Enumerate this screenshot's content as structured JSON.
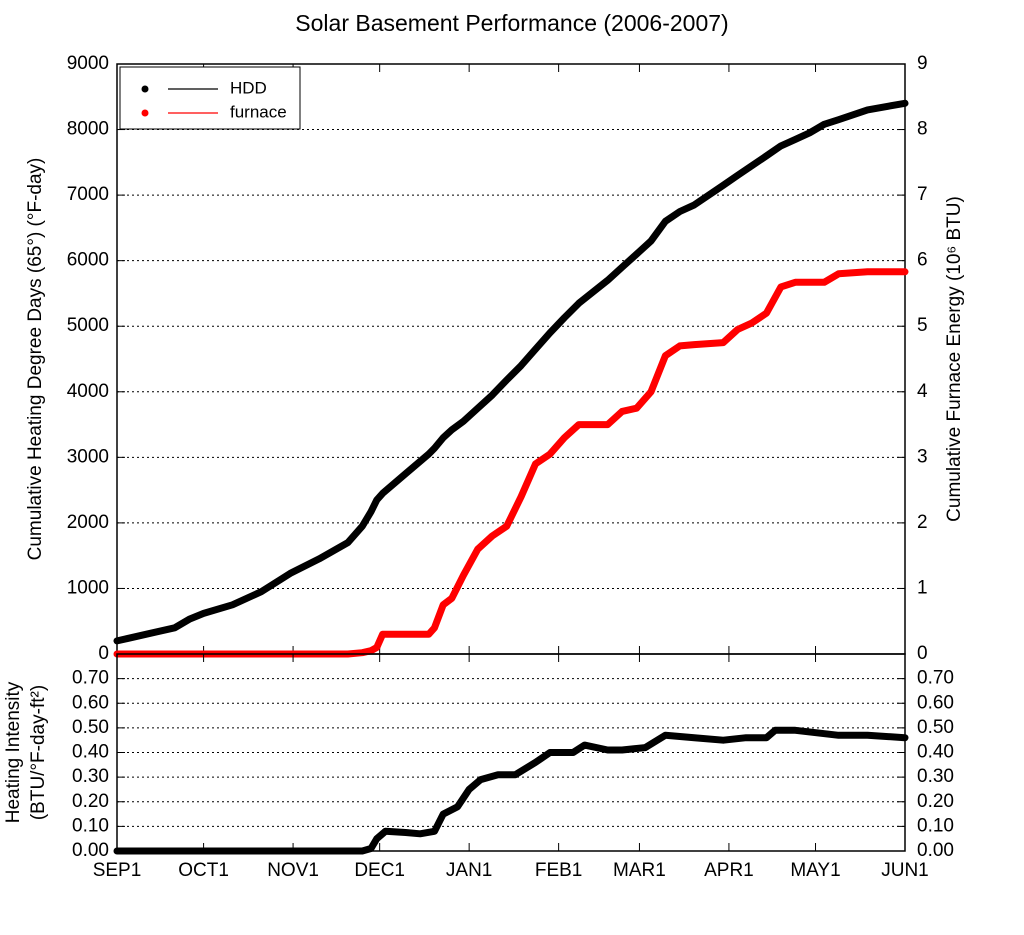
{
  "chart_data": [
    {
      "type": "line",
      "title": "Solar Basement Performance (2006-2007)",
      "ylabel": "Cumulative Heating Degree Days (65°) (°F-day)",
      "y2label": "Cumulative Furnace Energy (10⁶ BTU)",
      "legend": "upper left",
      "grid": true,
      "xlim": [
        0,
        273
      ],
      "ylim": [
        0,
        9000
      ],
      "yticks": [
        0,
        1000,
        2000,
        3000,
        4000,
        5000,
        6000,
        7000,
        8000,
        9000
      ],
      "y2lim": [
        0,
        9
      ],
      "y2ticks": [
        0,
        1,
        2,
        3,
        4,
        5,
        6,
        7,
        8,
        9
      ],
      "x": [
        0,
        10,
        20,
        25,
        30,
        40,
        50,
        60,
        70,
        80,
        85,
        88,
        90,
        92,
        100,
        108,
        110,
        113,
        116,
        120,
        125,
        130,
        135,
        140,
        145,
        150,
        155,
        160,
        170,
        175,
        180,
        185,
        190,
        195,
        200,
        210,
        215,
        220,
        225,
        230,
        235,
        240,
        245,
        250,
        260,
        273
      ],
      "series": [
        {
          "name": "HDD",
          "color": "#000000",
          "values": [
            200,
            300,
            400,
            530,
            620,
            750,
            950,
            1230,
            1450,
            1700,
            1950,
            2170,
            2350,
            2450,
            2750,
            3050,
            3140,
            3300,
            3420,
            3550,
            3750,
            3950,
            4180,
            4400,
            4650,
            4900,
            5130,
            5350,
            5700,
            5900,
            6100,
            6300,
            6600,
            6750,
            6850,
            7150,
            7300,
            7450,
            7600,
            7750,
            7850,
            7950,
            8080,
            8150,
            8300,
            8400
          ]
        },
        {
          "name": "furnace",
          "color": "#ff0000",
          "axis": "y2",
          "values": [
            0,
            0,
            0,
            0,
            0,
            0,
            0,
            0,
            0,
            0,
            0.02,
            0.05,
            0.1,
            0.3,
            0.3,
            0.3,
            0.4,
            0.75,
            0.85,
            1.2,
            1.6,
            1.8,
            1.95,
            2.4,
            2.9,
            3.05,
            3.3,
            3.5,
            3.5,
            3.7,
            3.75,
            4.0,
            4.55,
            4.7,
            4.72,
            4.75,
            4.95,
            5.05,
            5.2,
            5.6,
            5.67,
            5.67,
            5.67,
            5.8,
            5.83,
            5.83
          ]
        }
      ]
    },
    {
      "type": "line",
      "ylabel": [
        "Heating Intensity",
        "(BTU/°F-day-ft²)"
      ],
      "grid": true,
      "xlim": [
        0,
        273
      ],
      "xticks": [
        {
          "value": 0,
          "label": "SEP1"
        },
        {
          "value": 30,
          "label": "OCT1"
        },
        {
          "value": 61,
          "label": "NOV1"
        },
        {
          "value": 91,
          "label": "DEC1"
        },
        {
          "value": 122,
          "label": "JAN1"
        },
        {
          "value": 153,
          "label": "FEB1"
        },
        {
          "value": 181,
          "label": "MAR1"
        },
        {
          "value": 212,
          "label": "APR1"
        },
        {
          "value": 242,
          "label": "MAY1"
        },
        {
          "value": 273,
          "label": "JUN1"
        }
      ],
      "ylim": [
        0,
        0.8
      ],
      "yticks": [
        {
          "value": 0,
          "label": "0.00"
        },
        {
          "value": 0.1,
          "label": "0.10"
        },
        {
          "value": 0.2,
          "label": "0.20"
        },
        {
          "value": 0.3,
          "label": "0.30"
        },
        {
          "value": 0.4,
          "label": "0.40"
        },
        {
          "value": 0.5,
          "label": "0.50"
        },
        {
          "value": 0.6,
          "label": "0.60"
        },
        {
          "value": 0.7,
          "label": "0.70"
        }
      ],
      "y2lim": [
        0,
        0.8
      ],
      "y2ticks": [
        {
          "value": 0,
          "label": "0.00"
        },
        {
          "value": 0.1,
          "label": "0.10"
        },
        {
          "value": 0.2,
          "label": "0.20"
        },
        {
          "value": 0.3,
          "label": "0.30"
        },
        {
          "value": 0.4,
          "label": "0.40"
        },
        {
          "value": 0.5,
          "label": "0.50"
        },
        {
          "value": 0.6,
          "label": "0.60"
        },
        {
          "value": 0.7,
          "label": "0.70"
        }
      ],
      "x": [
        0,
        85,
        88,
        90,
        93,
        100,
        105,
        110,
        113,
        118,
        122,
        126,
        132,
        138,
        145,
        150,
        158,
        162,
        170,
        175,
        183,
        190,
        200,
        210,
        218,
        225,
        228,
        235,
        250,
        260,
        273
      ],
      "series": [
        {
          "color": "#000000",
          "values": [
            0,
            0,
            0.01,
            0.05,
            0.08,
            0.075,
            0.07,
            0.08,
            0.15,
            0.18,
            0.25,
            0.29,
            0.31,
            0.31,
            0.36,
            0.4,
            0.4,
            0.43,
            0.41,
            0.41,
            0.42,
            0.47,
            0.46,
            0.45,
            0.46,
            0.46,
            0.49,
            0.49,
            0.47,
            0.47,
            0.46
          ]
        }
      ]
    }
  ]
}
